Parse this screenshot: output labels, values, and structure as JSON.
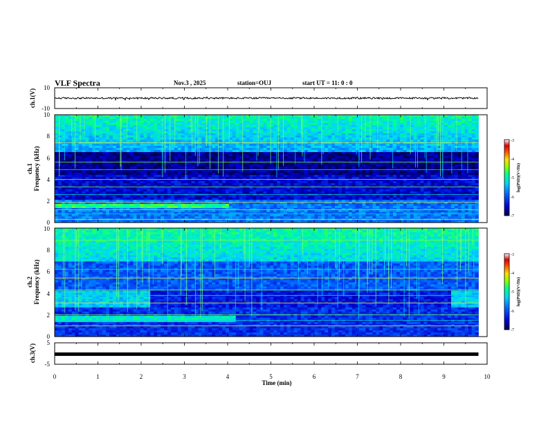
{
  "header": {
    "title": "VLF Spectra",
    "date": "Nov.3  , 2025",
    "station": "station=OUJ",
    "start_ut": "start  UT =   11: 0  : 0"
  },
  "chart_data": [
    {
      "type": "line",
      "id": "ch1-waveform",
      "ylabel": "ch.1(V)",
      "ylim": [
        -10,
        10
      ],
      "ytick_labels": [
        "10",
        "-10"
      ],
      "xlim": [
        0,
        10
      ],
      "approx_level": 0.0
    },
    {
      "type": "heatmap",
      "id": "ch1-spectrogram",
      "ylabel_channel": "ch.1",
      "ylabel": "Frequency  (kHz)",
      "ylim": [
        0,
        10
      ],
      "ytick_labels": [
        "0",
        "2",
        "4",
        "6",
        "8",
        "10"
      ],
      "xlim": [
        0,
        10
      ],
      "data_end_min": 9.8,
      "colorbar": {
        "label": "log(PSD)(V²/Hz)",
        "range": [
          -7,
          -3
        ],
        "tick_labels": [
          "-7",
          "-6",
          "-5",
          "-4",
          "-3"
        ]
      }
    },
    {
      "type": "heatmap",
      "id": "ch2-spectrogram",
      "ylabel_channel": "ch.2",
      "ylabel": "Frequency  (kHz)",
      "ylim": [
        0,
        10
      ],
      "ytick_labels": [
        "0",
        "2",
        "4",
        "6",
        "8",
        "10"
      ],
      "xlim": [
        0,
        10
      ],
      "data_end_min": 9.8,
      "colorbar": {
        "label": "log(PSD)(V²/Hz)",
        "range": [
          -7,
          -3
        ],
        "tick_labels": [
          "-7",
          "-6",
          "-5",
          "-4",
          "-3"
        ]
      }
    },
    {
      "type": "line",
      "id": "ch3-waveform",
      "ylabel": "ch.3(V)",
      "ylim": [
        -5,
        5
      ],
      "ytick_labels": [
        "5",
        "-5"
      ],
      "xlim": [
        0,
        10
      ],
      "approx_level": -0.3
    }
  ],
  "xaxis": {
    "label": "Time  (min)",
    "ticks": [
      0,
      1,
      2,
      3,
      4,
      5,
      6,
      7,
      8,
      9,
      10
    ],
    "tick_labels": [
      "0",
      "1",
      "2",
      "3",
      "4",
      "5",
      "6",
      "7",
      "8",
      "9",
      "10"
    ]
  },
  "colors": {
    "waveform": "#000000",
    "colormap": [
      "#00004a",
      "#0000c8",
      "#0046ff",
      "#00c8ff",
      "#00ffaa",
      "#64ff00",
      "#ffff00",
      "#ff6400",
      "#e60000",
      "#ffffff"
    ]
  }
}
